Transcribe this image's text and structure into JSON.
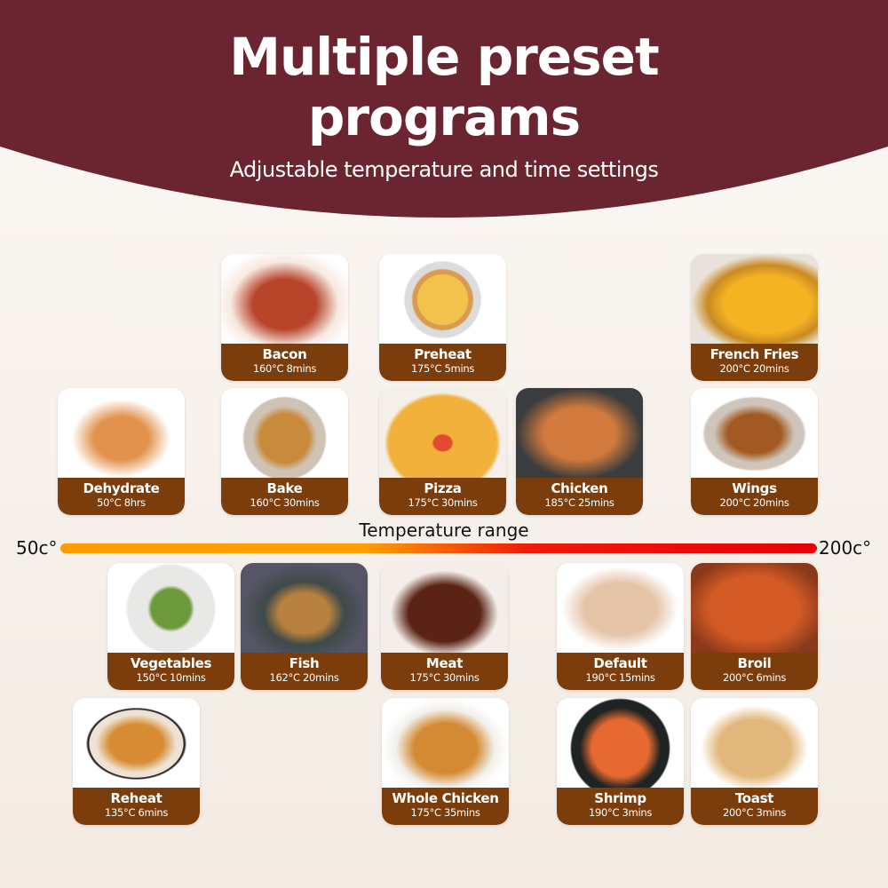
{
  "header": {
    "title_line1": "Multiple preset",
    "title_line2": "programs",
    "subtitle": "Adjustable temperature and time settings",
    "background_color": "#6a2530"
  },
  "temperature_range": {
    "label": "Temperature range",
    "min_label": "50c°",
    "max_label": "200c°",
    "gradient_colors": [
      "#ff9d00",
      "#e8000a"
    ]
  },
  "band_color": "#7b3d0c",
  "programs": [
    {
      "name": "Bacon",
      "spec": "160°C 8mins",
      "icon": "bacon-image"
    },
    {
      "name": "Preheat",
      "spec": "175°C 5mins",
      "icon": "tart-image"
    },
    {
      "name": "French Fries",
      "spec": "200°C 20mins",
      "icon": "fries-image"
    },
    {
      "name": "Dehydrate",
      "spec": "50°C 8hrs",
      "icon": "jerky-image"
    },
    {
      "name": "Bake",
      "spec": "160°C 30mins",
      "icon": "muffins-image"
    },
    {
      "name": "Pizza",
      "spec": "175°C 30mins",
      "icon": "pizza-image"
    },
    {
      "name": "Chicken",
      "spec": "185°C 25mins",
      "icon": "chicken-image"
    },
    {
      "name": "Wings",
      "spec": "200°C 20mins",
      "icon": "drumsticks-image"
    },
    {
      "name": "Vegetables",
      "spec": "150°C 10mins",
      "icon": "asparagus-image"
    },
    {
      "name": "Fish",
      "spec": "162°C 20mins",
      "icon": "fish-image"
    },
    {
      "name": "Meat",
      "spec": "175°C 30mins",
      "icon": "ribs-image"
    },
    {
      "name": "Default",
      "spec": "190°C 15mins",
      "icon": "chicken-wings-image"
    },
    {
      "name": "Broil",
      "spec": "200°C 6mins",
      "icon": "shrimp-pile-image"
    },
    {
      "name": "Reheat",
      "spec": "135°C 6mins",
      "icon": "croissant-image"
    },
    {
      "name": "Whole Chicken",
      "spec": "175°C 35mins",
      "icon": "roast-chicken-image"
    },
    {
      "name": "Shrimp",
      "spec": "190°C 3mins",
      "icon": "shrimp-plate-image"
    },
    {
      "name": "Toast",
      "spec": "200°C 3mins",
      "icon": "toast-image"
    }
  ]
}
